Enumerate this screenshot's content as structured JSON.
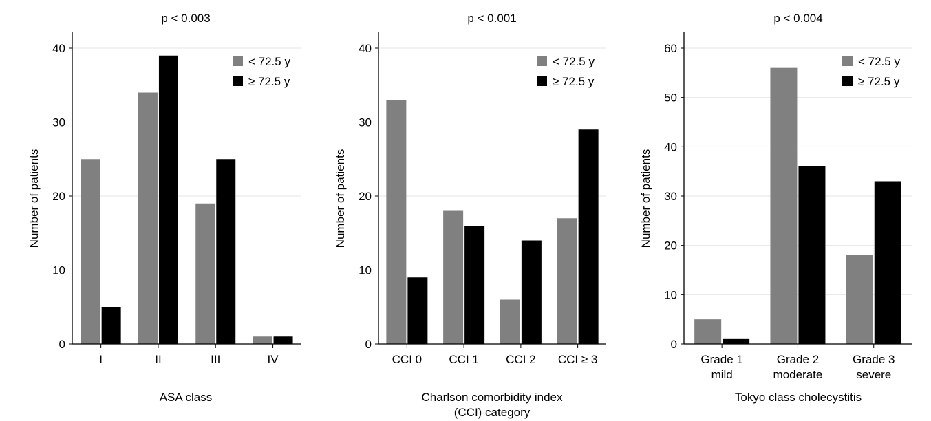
{
  "legend": {
    "young_label": "< 72.5 y",
    "old_label": "≥ 72.5 y"
  },
  "colors": {
    "young": "#808080",
    "old": "#000000",
    "grid": "#e6e6e6",
    "axis": "#000000"
  },
  "chart_data": [
    {
      "type": "bar",
      "title": "p < 0.003",
      "xlabel": "ASA class",
      "ylabel": "Number of patients",
      "categories": [
        "I",
        "II",
        "III",
        "IV"
      ],
      "series": [
        {
          "name": "< 72.5 y",
          "values": [
            25,
            34,
            19,
            1
          ]
        },
        {
          "name": "≥ 72.5 y",
          "values": [
            5,
            39,
            25,
            1
          ]
        }
      ],
      "ylim": [
        0,
        40
      ],
      "yticks": [
        0,
        10,
        20,
        30,
        40
      ],
      "grid": true,
      "legend_position": "top-right"
    },
    {
      "type": "bar",
      "title": "p < 0.001",
      "xlabel": "Charlson comorbidity index (CCI) category",
      "ylabel": "Number of patients",
      "categories": [
        "CCI 0",
        "CCI 1",
        "CCI 2",
        "CCI ≥ 3"
      ],
      "series": [
        {
          "name": "< 72.5 y",
          "values": [
            33,
            18,
            6,
            17
          ]
        },
        {
          "name": "≥ 72.5 y",
          "values": [
            9,
            16,
            14,
            29
          ]
        }
      ],
      "ylim": [
        0,
        40
      ],
      "yticks": [
        0,
        10,
        20,
        30,
        40
      ],
      "grid": true,
      "legend_position": "top-right"
    },
    {
      "type": "bar",
      "title": "p < 0.004",
      "xlabel": "Tokyo class cholecystitis",
      "ylabel": "Number of patients",
      "categories": [
        "Grade 1 mild",
        "Grade 2 moderate",
        "Grade 3 severe"
      ],
      "series": [
        {
          "name": "< 72.5 y",
          "values": [
            5,
            56,
            18
          ]
        },
        {
          "name": "≥ 72.5 y",
          "values": [
            1,
            36,
            33
          ]
        }
      ],
      "ylim": [
        0,
        60
      ],
      "yticks": [
        0,
        10,
        20,
        30,
        40,
        50,
        60
      ],
      "grid": true,
      "legend_position": "top-right"
    }
  ]
}
